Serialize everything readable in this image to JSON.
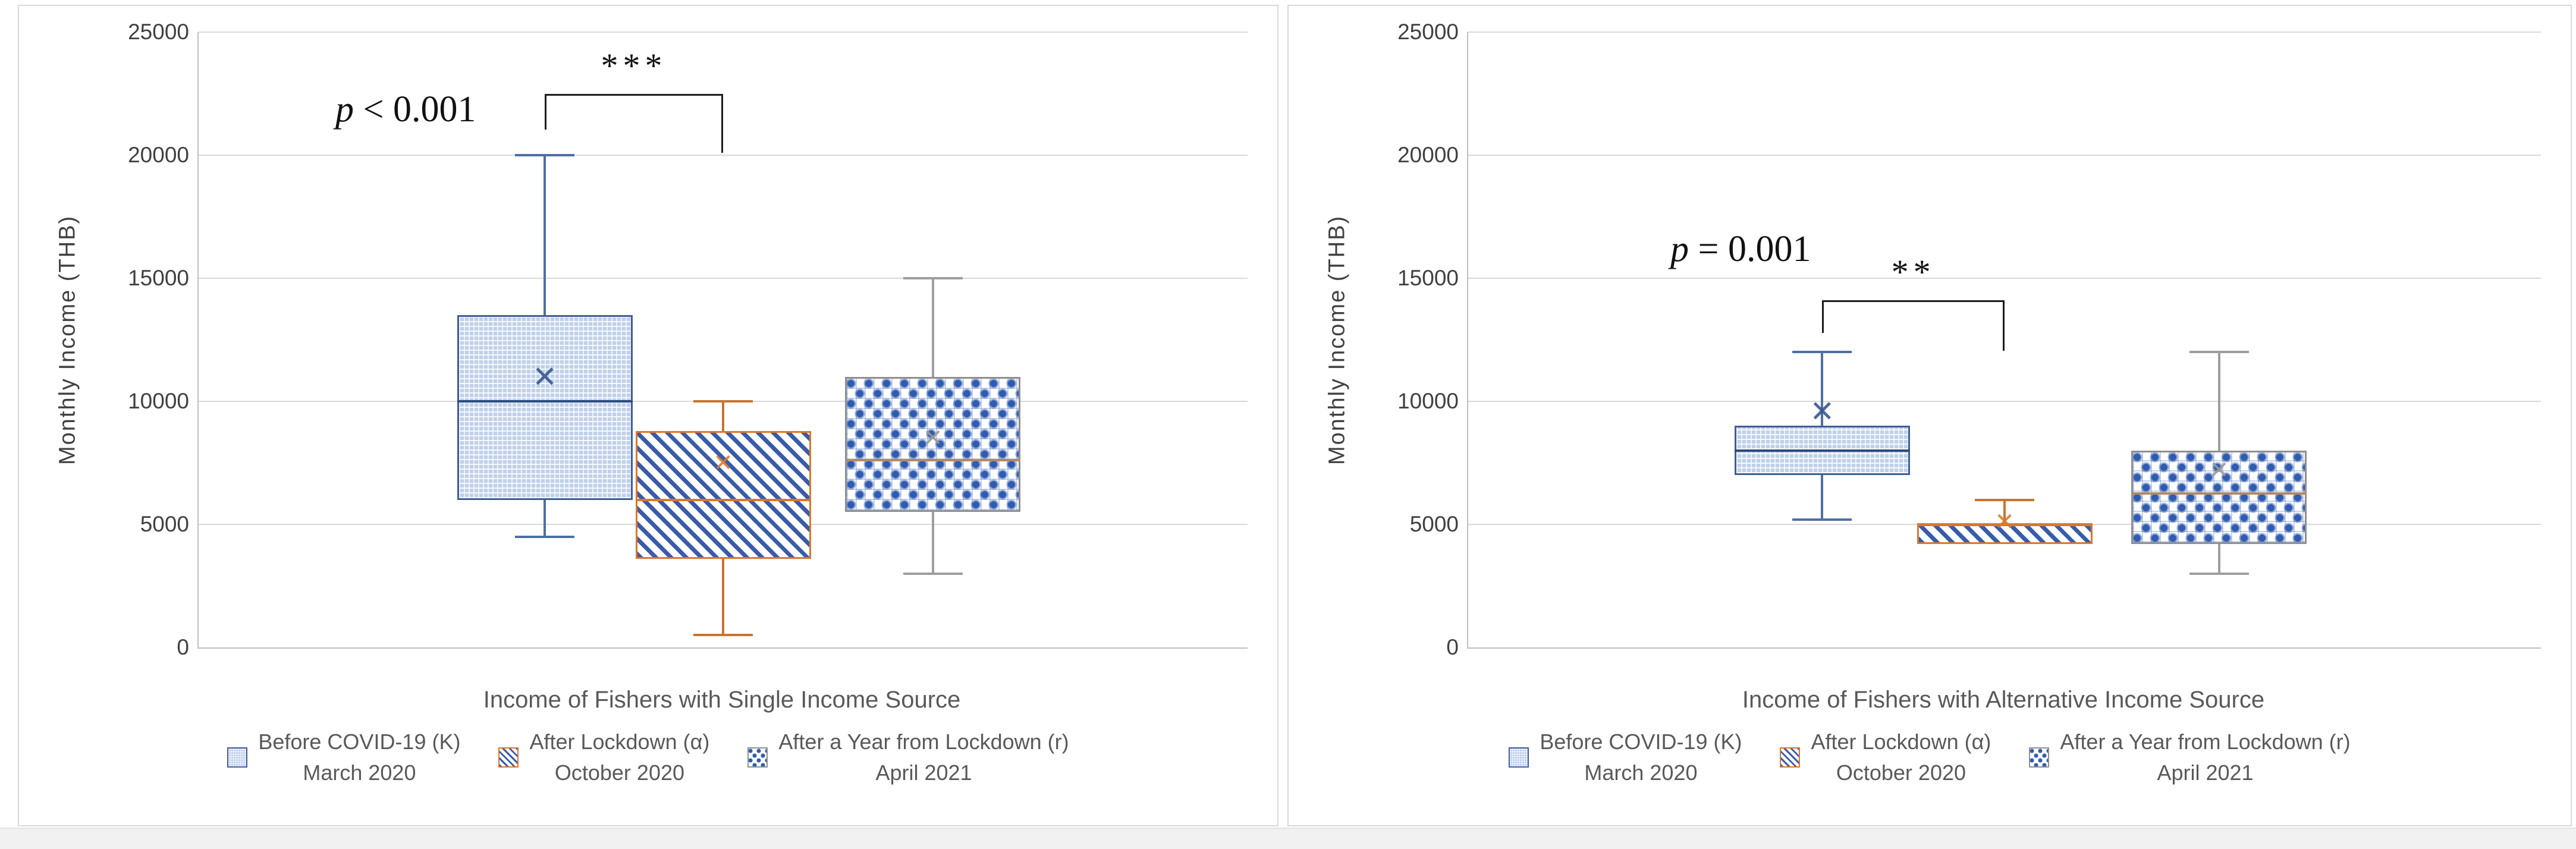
{
  "meta": {
    "mean_marker": "✕",
    "colors": {
      "series_blue": "#3F5E96",
      "series_orange": "#D9782D",
      "series_gray": "#8F8F8F",
      "pattern_blue": "#3A5BA9",
      "diamond_median_tan": "#B28A64",
      "gridline": "#D9D9D9",
      "text_gray": "#595959"
    }
  },
  "chart_data": [
    {
      "type": "box",
      "title": "Income of Fishers with Single Income Source",
      "ylabel": "Monthly Income (THB)",
      "ylim": [
        0,
        25000
      ],
      "ytick_step": 5000,
      "grid": true,
      "legend_position": "bottom",
      "annotation": {
        "p_symbol": "p",
        "p_text": "< 0.001",
        "stars": "***",
        "bracket": {
          "between": [
            0,
            1
          ],
          "top": 22500,
          "tick_left": 1450,
          "tick_right": 2400
        }
      },
      "series": [
        {
          "name": "Before COVID-19 (K)",
          "sub": "March 2020",
          "style": "blue-check",
          "min": 4500,
          "q1": 6000,
          "median": 10000,
          "q3": 13500,
          "max": 20000,
          "mean": 11000
        },
        {
          "name": "After Lockdown (α)",
          "sub": "October 2020",
          "style": "orange-stripe",
          "min": 500,
          "q1": 3600,
          "median": 6000,
          "q3": 8800,
          "max": 10000,
          "mean": 7500
        },
        {
          "name": "After a Year from Lockdown (r)",
          "sub": "April 2021",
          "style": "blue-diamond",
          "min": 3000,
          "q1": 5500,
          "median": 7600,
          "q3": 11000,
          "max": 15000,
          "mean": 8500
        }
      ]
    },
    {
      "type": "box",
      "title": "Income of Fishers with Alternative Income Source",
      "ylabel": "Monthly Income (THB)",
      "ylim": [
        0,
        25000
      ],
      "ytick_step": 5000,
      "grid": true,
      "legend_position": "bottom",
      "annotation": {
        "p_symbol": "p",
        "p_text": "= 0.001",
        "stars": "**",
        "bracket": {
          "between": [
            0,
            1
          ],
          "top": 14100,
          "tick_left": 1330,
          "tick_right": 2050
        }
      },
      "series": [
        {
          "name": "Before COVID-19 (K)",
          "sub": "March 2020",
          "style": "blue-check",
          "min": 5200,
          "q1": 7000,
          "median": 8000,
          "q3": 9000,
          "max": 12000,
          "mean": 9600
        },
        {
          "name": "After Lockdown (α)",
          "sub": "October 2020",
          "style": "orange-stripe",
          "min": 4200,
          "q1": 4200,
          "median": 5000,
          "q3": 5000,
          "max": 6000,
          "mean": 5100
        },
        {
          "name": "After a Year from Lockdown (r)",
          "sub": "April 2021",
          "style": "blue-diamond",
          "min": 3000,
          "q1": 4200,
          "median": 6250,
          "q3": 8000,
          "max": 12000,
          "mean": 7200
        }
      ]
    }
  ]
}
